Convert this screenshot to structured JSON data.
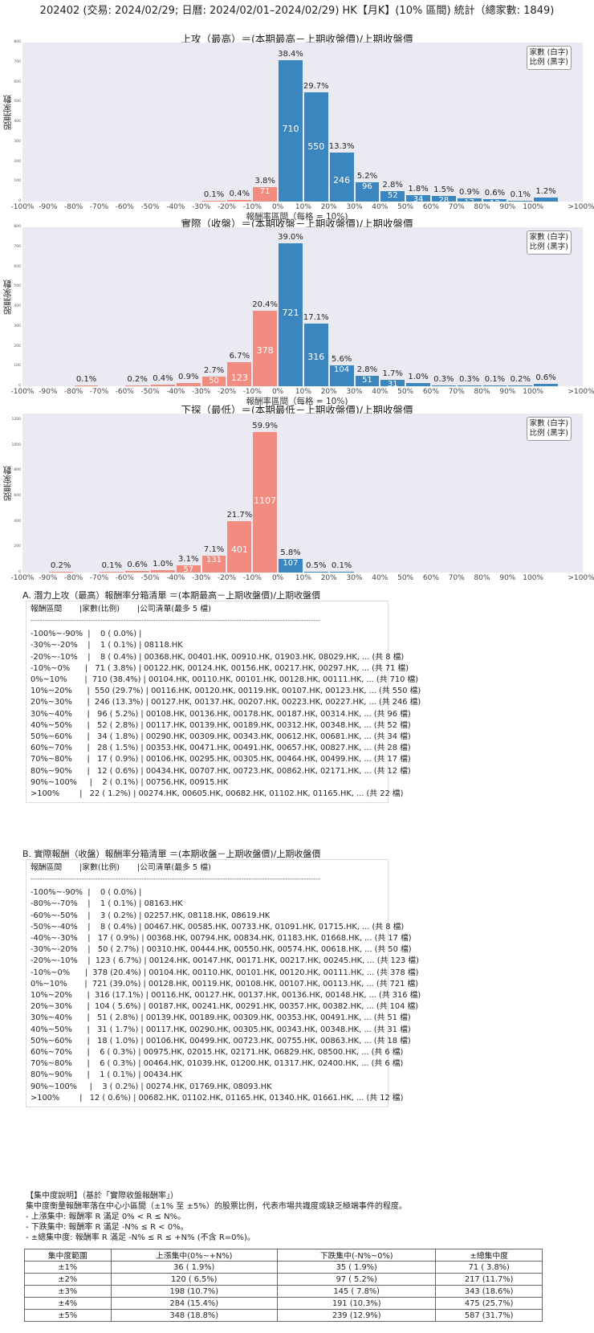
{
  "page_title": "202402 (交易: 2024/02/29; 日曆: 2024/02/01–2024/02/29) HK【月K】(10% 區間) 統計（總家數: 1849)",
  "legend": {
    "line1": "家數 (白字)",
    "line2": "比例 (黑字)"
  },
  "x_categories": [
    "-100%",
    "-90%",
    "-80%",
    "-70%",
    "-60%",
    "-50%",
    "-40%",
    "-30%",
    "-20%",
    "-10%",
    "0%",
    "10%",
    "20%",
    "30%",
    "40%",
    "50%",
    "60%",
    "70%",
    "80%",
    "90%",
    "100%",
    ">100%"
  ],
  "chart_data": [
    {
      "type": "bar",
      "title": "上攻（最高）＝(本期最高－上期收盤價)/上期收盤價",
      "xlabel": "報酬率區間（每格 = 10%)",
      "ylabel": "股票家數",
      "ylim": [
        0,
        800
      ],
      "yticks": [
        0,
        100,
        200,
        300,
        400,
        500,
        600,
        700,
        800
      ],
      "grid": false,
      "legend_position": "upper right",
      "categories": [
        "-100%~-90%",
        "-90%~-80%",
        "-80%~-70%",
        "-70%~-60%",
        "-60%~-50%",
        "-50%~-40%",
        "-40%~-30%",
        "-30%~-20%",
        "-20%~-10%",
        "-10%~0%",
        "0%~10%",
        "10%~20%",
        "20%~30%",
        "30%~40%",
        "40%~50%",
        "50%~60%",
        "60%~70%",
        "70%~80%",
        "80%~90%",
        "90%~100%",
        ">100%"
      ],
      "values": [
        0,
        0,
        0,
        0,
        0,
        0,
        0,
        1,
        8,
        71,
        710,
        550,
        246,
        96,
        52,
        34,
        28,
        17,
        12,
        2,
        22
      ],
      "percent_labels": [
        "",
        "",
        "",
        "",
        "",
        "",
        "",
        "0.1%",
        "0.4%",
        "3.8%",
        "38.4%",
        "29.7%",
        "13.3%",
        "5.2%",
        "2.8%",
        "1.8%",
        "1.5%",
        "0.9%",
        "0.6%",
        "0.1%",
        "1.2%"
      ],
      "count_labels": [
        "",
        "",
        "",
        "",
        "",
        "",
        "",
        "",
        "",
        "71",
        "710",
        "550",
        "246",
        "96",
        "52",
        "34",
        "28",
        "17",
        "12",
        "",
        ""
      ]
    },
    {
      "type": "bar",
      "title": "實際（收盤）＝(本期收盤－上期收盤價)/上期收盤價",
      "xlabel": "報酬率區間（每格 = 10%)",
      "ylabel": "股票家數",
      "ylim": [
        0,
        800
      ],
      "yticks": [
        0,
        100,
        200,
        300,
        400,
        500,
        600,
        700,
        800
      ],
      "grid": false,
      "legend_position": "upper right",
      "categories": [
        "-100%~-90%",
        "-90%~-80%",
        "-80%~-70%",
        "-70%~-60%",
        "-60%~-50%",
        "-50%~-40%",
        "-40%~-30%",
        "-30%~-20%",
        "-20%~-10%",
        "-10%~0%",
        "0%~10%",
        "10%~20%",
        "20%~30%",
        "30%~40%",
        "40%~50%",
        "50%~60%",
        "60%~70%",
        "70%~80%",
        "80%~90%",
        "90%~100%",
        ">100%"
      ],
      "values": [
        0,
        0,
        1,
        0,
        3,
        8,
        17,
        50,
        123,
        378,
        721,
        316,
        104,
        51,
        31,
        18,
        6,
        6,
        1,
        3,
        12
      ],
      "percent_labels": [
        "",
        "",
        "0.1%",
        "",
        "0.2%",
        "0.4%",
        "0.9%",
        "2.7%",
        "6.7%",
        "20.4%",
        "39.0%",
        "17.1%",
        "5.6%",
        "2.8%",
        "1.7%",
        "1.0%",
        "0.3%",
        "0.3%",
        "0.1%",
        "0.2%",
        "0.6%"
      ],
      "count_labels": [
        "",
        "",
        "",
        "",
        "",
        "",
        "",
        "50",
        "123",
        "378",
        "721",
        "316",
        "104",
        "51",
        "31",
        "",
        "",
        "",
        "",
        "",
        ""
      ]
    },
    {
      "type": "bar",
      "title": "下探（最低）＝(本期最低－上期收盤價)/上期收盤價",
      "xlabel": "報酬率區間（每格 = 10%)",
      "ylabel": "股票家數",
      "ylim": [
        0,
        1250
      ],
      "yticks": [
        0,
        200,
        400,
        600,
        800,
        1000,
        1200
      ],
      "grid": false,
      "legend_position": "upper right",
      "categories": [
        "-100%~-90%",
        "-90%~-80%",
        "-80%~-70%",
        "-70%~-60%",
        "-60%~-50%",
        "-50%~-40%",
        "-40%~-30%",
        "-30%~-20%",
        "-20%~-10%",
        "-10%~0%",
        "0%~10%",
        "10%~20%",
        "20%~30%",
        "30%~40%",
        "40%~50%",
        "50%~60%",
        "60%~70%",
        "70%~80%",
        "80%~90%",
        "90%~100%",
        ">100%"
      ],
      "values": [
        0,
        4,
        0,
        2,
        11,
        19,
        57,
        131,
        401,
        1107,
        107,
        9,
        2,
        0,
        0,
        0,
        0,
        0,
        0,
        0,
        0
      ],
      "percent_labels": [
        "",
        "0.2%",
        "",
        "0.1%",
        "0.6%",
        "1.0%",
        "3.1%",
        "7.1%",
        "21.7%",
        "59.9%",
        "5.8%",
        "0.5%",
        "0.1%",
        "",
        "",
        "",
        "",
        "",
        "",
        "",
        ""
      ],
      "count_labels": [
        "",
        "",
        "",
        "",
        "",
        "",
        "57",
        "131",
        "401",
        "1107",
        "107",
        "",
        "",
        "",
        "",
        "",
        "",
        "",
        "",
        "",
        ""
      ]
    }
  ],
  "section_a": {
    "title": "A. 潛力上攻（最高）報酬率分箱清單 ＝(本期最高－上期收盤價)/上期收盤價",
    "header": "報酬區間       |家數(比例)       |公司清單(最多 5 檔)",
    "separator": "-----------------------------------------------------------------------------------------------------------------------------",
    "rows": [
      "-100%~-90%  |    0 ( 0.0%) |",
      "-30%~-20%    |    1 ( 0.1%) | 08118.HK",
      "-20%~-10%    |    8 ( 0.4%) | 00368.HK, 00401.HK, 00910.HK, 01903.HK, 08029.HK, ... (共 8 檔)",
      "-10%~0%      |   71 ( 3.8%) | 00122.HK, 00124.HK, 00156.HK, 00217.HK, 00297.HK, ... (共 71 檔)",
      "0%~10%       |  710 (38.4%) | 00104.HK, 00110.HK, 00101.HK, 00128.HK, 00111.HK, ... (共 710 檔)",
      "10%~20%      |  550 (29.7%) | 00116.HK, 00120.HK, 00119.HK, 00107.HK, 00123.HK, ... (共 550 檔)",
      "20%~30%      |  246 (13.3%) | 00127.HK, 00137.HK, 00207.HK, 00223.HK, 00227.HK, ... (共 246 檔)",
      "30%~40%      |   96 ( 5.2%) | 00108.HK, 00136.HK, 00178.HK, 00187.HK, 00314.HK, ... (共 96 檔)",
      "40%~50%      |   52 ( 2.8%) | 00117.HK, 00139.HK, 00189.HK, 00312.HK, 00348.HK, ... (共 52 檔)",
      "50%~60%      |   34 ( 1.8%) | 00290.HK, 00309.HK, 00343.HK, 00612.HK, 00681.HK, ... (共 34 檔)",
      "60%~70%      |   28 ( 1.5%) | 00353.HK, 00471.HK, 00491.HK, 00657.HK, 00827.HK, ... (共 28 檔)",
      "70%~80%      |   17 ( 0.9%) | 00106.HK, 00295.HK, 00305.HK, 00464.HK, 00499.HK, ... (共 17 檔)",
      "80%~90%      |   12 ( 0.6%) | 00434.HK, 00707.HK, 00723.HK, 00862.HK, 02171.HK, ... (共 12 檔)",
      "90%~100%     |    2 ( 0.1%) | 00756.HK, 00915.HK",
      ">100%        |   22 ( 1.2%) | 00274.HK, 00605.HK, 00682.HK, 01102.HK, 01165.HK, ... (共 22 檔)"
    ]
  },
  "section_b": {
    "title": "B. 實際報酬（收盤）報酬率分箱清單 ＝(本期收盤－上期收盤價)/上期收盤價",
    "header": "報酬區間       |家數(比例)       |公司清單(最多 5 檔)",
    "separator": "-----------------------------------------------------------------------------------------------------------------------------",
    "rows": [
      "-100%~-90%  |    0 ( 0.0%) |",
      "-80%~-70%    |    1 ( 0.1%) | 08163.HK",
      "-60%~-50%    |    3 ( 0.2%) | 02257.HK, 08118.HK, 08619.HK",
      "-50%~-40%    |    8 ( 0.4%) | 00467.HK, 00585.HK, 00733.HK, 01091.HK, 01715.HK, ... (共 8 檔)",
      "-40%~-30%    |   17 ( 0.9%) | 00368.HK, 00794.HK, 00834.HK, 01183.HK, 01668.HK, ... (共 17 檔)",
      "-30%~-20%    |   50 ( 2.7%) | 00310.HK, 00444.HK, 00550.HK, 00574.HK, 00618.HK, ... (共 50 檔)",
      "-20%~-10%    |  123 ( 6.7%) | 00124.HK, 00147.HK, 00171.HK, 00217.HK, 00245.HK, ... (共 123 檔)",
      "-10%~0%      |  378 (20.4%) | 00104.HK, 00110.HK, 00101.HK, 00120.HK, 00111.HK, ... (共 378 檔)",
      "0%~10%       |  721 (39.0%) | 00128.HK, 00119.HK, 00108.HK, 00107.HK, 00113.HK, ... (共 721 檔)",
      "10%~20%      |  316 (17.1%) | 00116.HK, 00127.HK, 00137.HK, 00136.HK, 00148.HK, ... (共 316 檔)",
      "20%~30%      |  104 ( 5.6%) | 00187.HK, 00241.HK, 00291.HK, 00357.HK, 00382.HK, ... (共 104 檔)",
      "30%~40%      |   51 ( 2.8%) | 00139.HK, 00189.HK, 00309.HK, 00353.HK, 00491.HK, ... (共 51 檔)",
      "40%~50%      |   31 ( 1.7%) | 00117.HK, 00290.HK, 00305.HK, 00343.HK, 00348.HK, ... (共 31 檔)",
      "50%~60%      |   18 ( 1.0%) | 00106.HK, 00499.HK, 00723.HK, 00755.HK, 00863.HK, ... (共 18 檔)",
      "60%~70%      |    6 ( 0.3%) | 00975.HK, 02015.HK, 02171.HK, 06829.HK, 08500.HK, ... (共 6 檔)",
      "70%~80%      |    6 ( 0.3%) | 00464.HK, 01039.HK, 01200.HK, 01317.HK, 02400.HK, ... (共 6 檔)",
      "80%~90%      |    1 ( 0.1%) | 00434.HK",
      "90%~100%     |    3 ( 0.2%) | 00274.HK, 01769.HK, 08093.HK",
      ">100%        |   12 ( 0.6%) | 00682.HK, 01102.HK, 01165.HK, 01340.HK, 01661.HK, ... (共 12 檔)"
    ]
  },
  "concentration": {
    "title": "【集中度說明】（基於「實際收盤報酬率」）",
    "description": "集中度衡量報酬率落在中心小區間（±1% 至 ±5%）的股票比例，代表市場共識度或缺乏極端事件的程度。",
    "bullets": [
      " - 上漲集中: 報酬率 R 滿足 0% < R ≤ N%。",
      " - 下跌集中: 報酬率 R 滿足 -N% ≤ R < 0%。",
      " - ±總集中度: 報酬率 R 滿足 -N% ≤ R ≤ +N% (不含 R=0%)。"
    ],
    "table": {
      "headers": [
        "集中度範圍",
        "上漲集中(0%~+N%)",
        "下跌集中(-N%~0%)",
        "±總集中度"
      ],
      "rows": [
        [
          "±1%",
          "36 ( 1.9%)",
          "35 ( 1.9%)",
          "71 ( 3.8%)"
        ],
        [
          "±2%",
          "120 ( 6.5%)",
          "97 ( 5.2%)",
          "217 (11.7%)"
        ],
        [
          "±3%",
          "198 (10.7%)",
          "145 ( 7.8%)",
          "343 (18.6%)"
        ],
        [
          "±4%",
          "284 (15.4%)",
          "191 (10.3%)",
          "475 (25.7%)"
        ],
        [
          "±5%",
          "348 (18.8%)",
          "239 (12.9%)",
          "587 (31.7%)"
        ]
      ]
    }
  },
  "colors": {
    "negative_bar": "#f28b80",
    "positive_bar": "#3b86bf",
    "plot_bg": "#eaeaf2"
  }
}
